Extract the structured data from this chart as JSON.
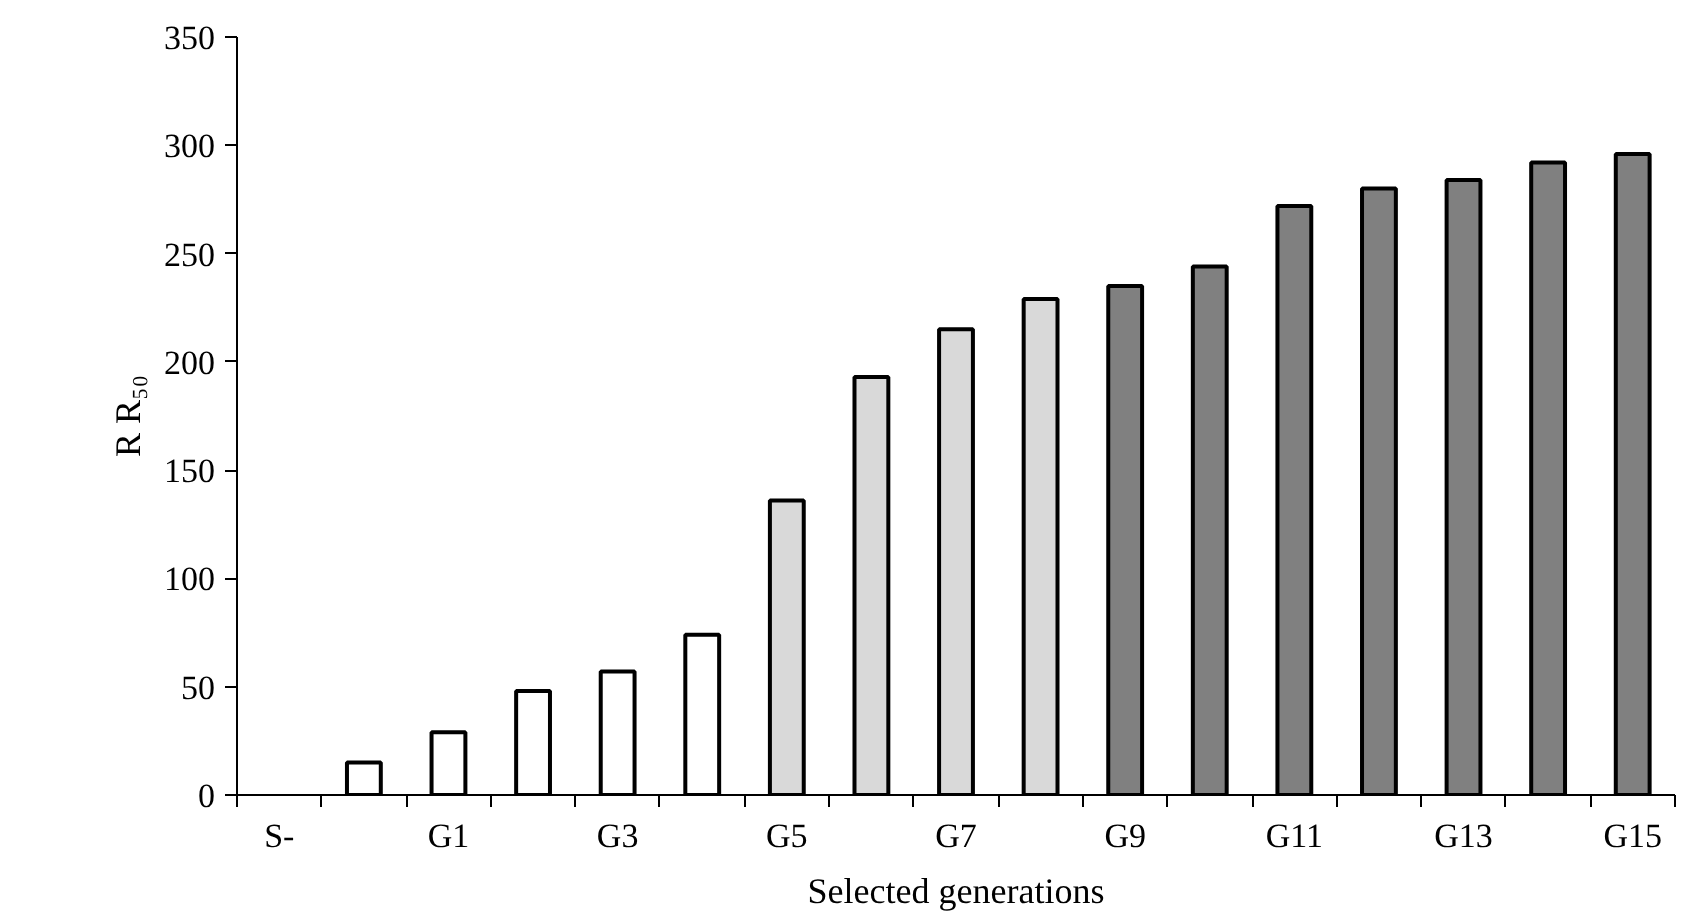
{
  "chart_data": {
    "type": "bar",
    "xlabel": "Selected generations",
    "ylabel": "R R₅₀",
    "categories": [
      "S-",
      null,
      "G1",
      null,
      "G3",
      null,
      "G5",
      null,
      "G7",
      null,
      "G9",
      null,
      "G11",
      null,
      "G13",
      null,
      "G15"
    ],
    "values": [
      null,
      15,
      29,
      48,
      57,
      74,
      136,
      193,
      215,
      229,
      235,
      244,
      272,
      280,
      284,
      292,
      296
    ],
    "colors": [
      "#ffffff",
      "#ffffff",
      "#ffffff",
      "#ffffff",
      "#ffffff",
      "#ffffff",
      "#d9d9d9",
      "#d9d9d9",
      "#d9d9d9",
      "#d9d9d9",
      "#808080",
      "#808080",
      "#808080",
      "#808080",
      "#808080",
      "#808080",
      "#808080"
    ],
    "ylim": [
      0,
      350
    ],
    "yticks": [
      0,
      50,
      100,
      150,
      200,
      250,
      300,
      350
    ],
    "grid": false
  }
}
